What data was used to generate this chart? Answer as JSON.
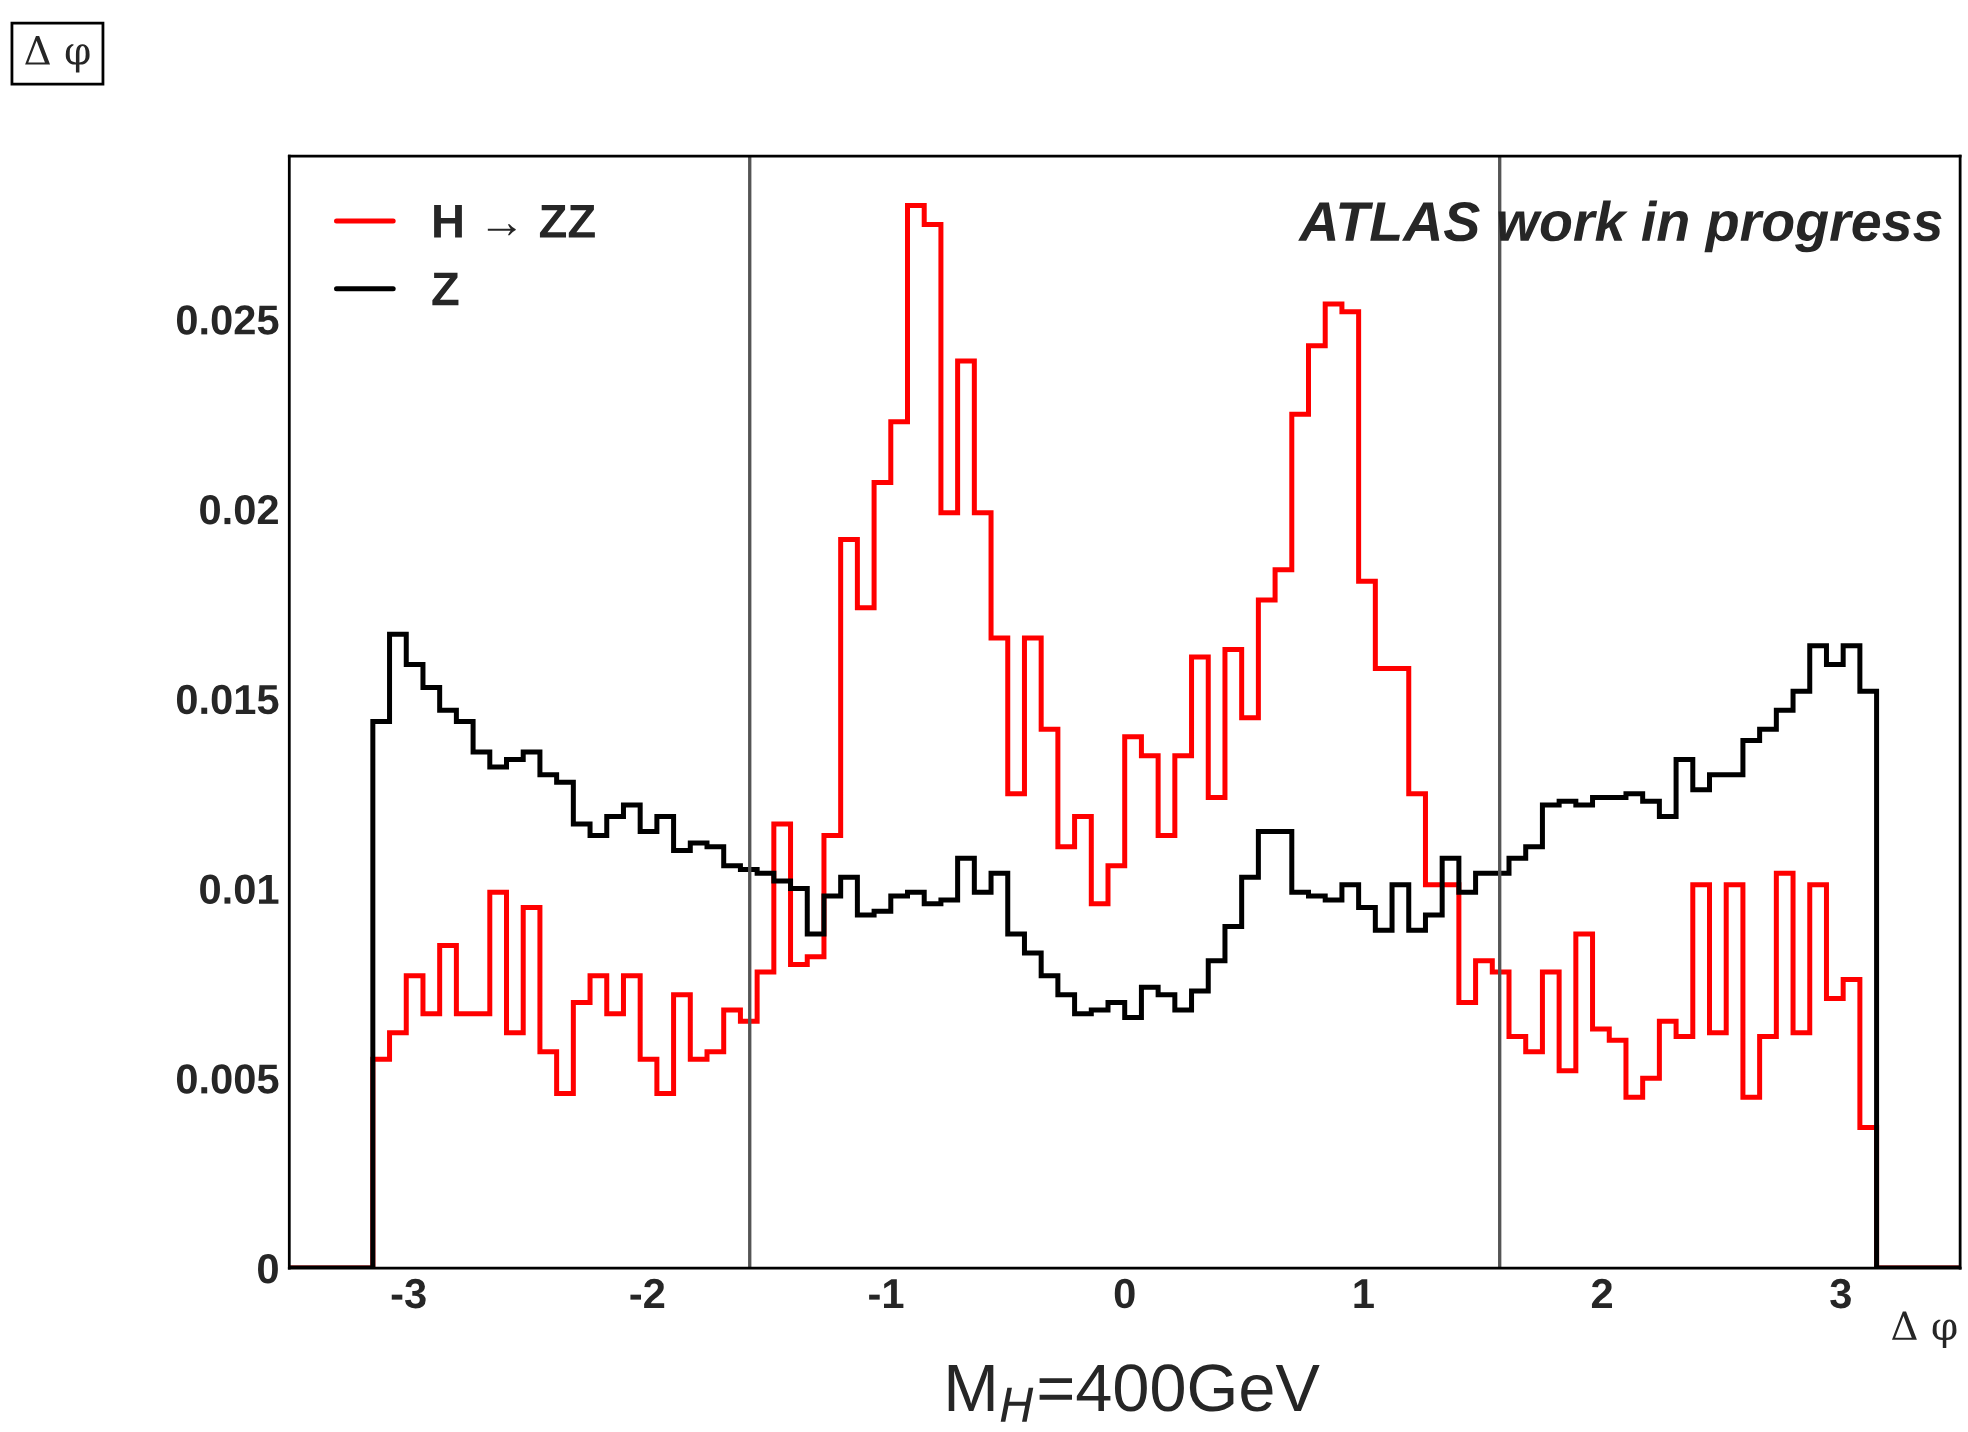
{
  "chart_data": {
    "type": "histogram",
    "title": "Δ φ",
    "xlabel": "Δ φ",
    "annotations": [
      "ATLAS work in progress",
      "M$_{H}$=400GeV"
    ],
    "bins": [
      -3.5,
      -3.43,
      -3.36,
      -3.29,
      -3.22,
      -3.15,
      -3.08,
      -3.01,
      -2.94,
      -2.87,
      -2.8,
      -2.73,
      -2.66,
      -2.59,
      -2.52,
      -2.45,
      -2.38,
      -2.31,
      -2.24,
      -2.17,
      -2.1,
      -2.03,
      -1.96,
      -1.89,
      -1.82,
      -1.75,
      -1.68,
      -1.61,
      -1.54,
      -1.47,
      -1.4,
      -1.33,
      -1.26,
      -1.19,
      -1.12,
      -1.05,
      -0.98,
      -0.91,
      -0.84,
      -0.77,
      -0.7,
      -0.63,
      -0.56,
      -0.49,
      -0.42,
      -0.35,
      -0.28,
      -0.21,
      -0.14,
      -0.07,
      0,
      0.07,
      0.14,
      0.21,
      0.28,
      0.35,
      0.42,
      0.49,
      0.56,
      0.63,
      0.7,
      0.77,
      0.84,
      0.91,
      0.98,
      1.05,
      1.12,
      1.19,
      1.26,
      1.33,
      1.4,
      1.47,
      1.54,
      1.61,
      1.68,
      1.75,
      1.82,
      1.89,
      1.96,
      2.03,
      2.1,
      2.17,
      2.24,
      2.31,
      2.38,
      2.45,
      2.52,
      2.59,
      2.66,
      2.73,
      2.8,
      2.87,
      2.94,
      3.01,
      3.08,
      3.15,
      3.22,
      3.29,
      3.36,
      3.43,
      3.5
    ],
    "series": [
      {
        "name": "H → ZZ",
        "color": "#ff0000",
        "values": [
          0,
          0,
          0,
          0,
          0,
          0.0055,
          0.0062,
          0.0077,
          0.0067,
          0.0085,
          0.0067,
          0.0067,
          0.0099,
          0.0062,
          0.0095,
          0.0057,
          0.0046,
          0.007,
          0.0077,
          0.0067,
          0.0077,
          0.0055,
          0.0046,
          0.0072,
          0.0055,
          0.0057,
          0.0068,
          0.0065,
          0.0078,
          0.0117,
          0.008,
          0.0082,
          0.0114,
          0.0192,
          0.0174,
          0.0207,
          0.0223,
          0.028,
          0.0275,
          0.0199,
          0.0239,
          0.0199,
          0.0166,
          0.0125,
          0.0166,
          0.0142,
          0.0111,
          0.0119,
          0.0096,
          0.0106,
          0.014,
          0.0135,
          0.0114,
          0.0135,
          0.0161,
          0.0124,
          0.0163,
          0.0145,
          0.0176,
          0.0184,
          0.0225,
          0.0243,
          0.0254,
          0.0252,
          0.0181,
          0.0158,
          0.0158,
          0.0125,
          0.0101,
          0.0101,
          0.007,
          0.0081,
          0.0078,
          0.0061,
          0.0057,
          0.0078,
          0.0052,
          0.0088,
          0.0063,
          0.006,
          0.0045,
          0.005,
          0.0065,
          0.0061,
          0.0101,
          0.0062,
          0.0101,
          0.0045,
          0.0061,
          0.0104,
          0.0062,
          0.0101,
          0.0071,
          0.0076,
          0.0037,
          0,
          0,
          0,
          0,
          0
        ]
      },
      {
        "name": "Z",
        "color": "#000000",
        "values": [
          0,
          0,
          0,
          0,
          0,
          0.0144,
          0.0167,
          0.0159,
          0.0153,
          0.0147,
          0.0144,
          0.0136,
          0.0132,
          0.0134,
          0.0136,
          0.013,
          0.0128,
          0.0117,
          0.0114,
          0.0119,
          0.0122,
          0.0115,
          0.0119,
          0.011,
          0.0112,
          0.0111,
          0.0106,
          0.0105,
          0.0104,
          0.0102,
          0.01,
          0.0088,
          0.0098,
          0.0103,
          0.0093,
          0.0094,
          0.0098,
          0.0099,
          0.0096,
          0.0097,
          0.0108,
          0.0099,
          0.0104,
          0.0088,
          0.0083,
          0.0077,
          0.0072,
          0.0067,
          0.0068,
          0.007,
          0.0066,
          0.0074,
          0.0072,
          0.0068,
          0.0073,
          0.0081,
          0.009,
          0.0103,
          0.0115,
          0.0115,
          0.0099,
          0.0098,
          0.0097,
          0.0101,
          0.0095,
          0.0089,
          0.0101,
          0.0089,
          0.0093,
          0.0108,
          0.0099,
          0.0104,
          0.0104,
          0.0108,
          0.0111,
          0.0122,
          0.0123,
          0.0122,
          0.0124,
          0.0124,
          0.0125,
          0.0123,
          0.0119,
          0.0134,
          0.0126,
          0.013,
          0.013,
          0.0139,
          0.0142,
          0.0147,
          0.0152,
          0.0164,
          0.0159,
          0.0164,
          0.0152,
          0,
          0,
          0,
          0,
          0
        ]
      }
    ],
    "xlim": [
      -3.5,
      3.5
    ],
    "xticks": [
      -3,
      -2,
      -1,
      0,
      1,
      2,
      3
    ],
    "ylim": [
      0,
      0.0293
    ],
    "yticks": [
      0,
      0.005,
      0.01,
      0.015,
      0.02,
      0.025
    ],
    "ref_lines": [
      {
        "axis": "x",
        "value": -1.571,
        "color": "#555555"
      },
      {
        "axis": "x",
        "value": 1.571,
        "color": "#555555"
      }
    ],
    "legend": "top left",
    "grid": false
  }
}
